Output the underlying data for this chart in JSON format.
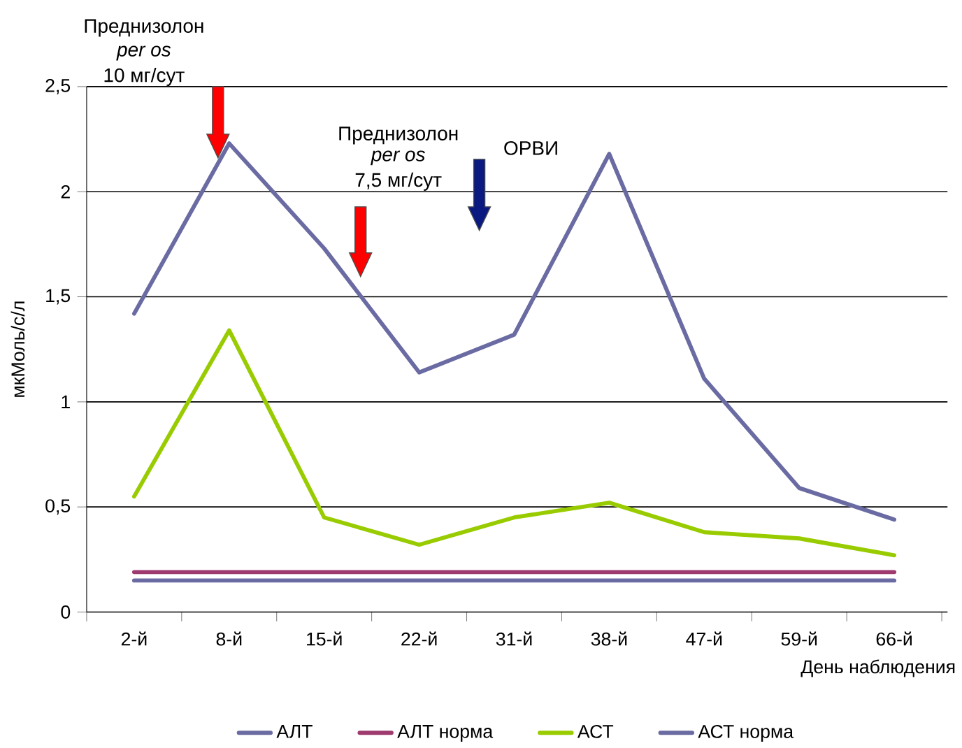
{
  "chart_data": {
    "type": "line",
    "xlabel": "День наблюдения",
    "ylabel": "мкМоль/с/л",
    "categories": [
      "2-й",
      "8-й",
      "15-й",
      "22-й",
      "31-й",
      "38-й",
      "47-й",
      "59-й",
      "66-й"
    ],
    "series": [
      {
        "name": "АЛТ",
        "color": "#6b6ba3",
        "values": [
          1.42,
          2.23,
          1.73,
          1.14,
          1.32,
          2.18,
          1.11,
          0.59,
          0.44
        ]
      },
      {
        "name": "АЛТ норма",
        "color": "#9e3a6e",
        "values": [
          0.19,
          0.19,
          0.19,
          0.19,
          0.19,
          0.19,
          0.19,
          0.19,
          0.19
        ]
      },
      {
        "name": "АСТ",
        "color": "#99cc00",
        "values": [
          0.55,
          1.34,
          0.45,
          0.32,
          0.45,
          0.52,
          0.38,
          0.35,
          0.27
        ]
      },
      {
        "name": "АСТ норма",
        "color": "#6b6ba3",
        "values": [
          0.15,
          0.15,
          0.15,
          0.15,
          0.15,
          0.15,
          0.15,
          0.15,
          0.15
        ]
      }
    ],
    "ylim": [
      0,
      2.5
    ],
    "yticks": [
      0,
      {
        "value": 0.5,
        "label": "0,5"
      },
      1,
      {
        "value": 1.5,
        "label": "1,5"
      },
      2,
      {
        "value": 2.5,
        "label": "2,5"
      }
    ],
    "grid": "y",
    "legend": "bottom",
    "marker": "none",
    "line_style": "solid",
    "annotations": [
      "Преднизолон",
      "*per os*",
      "10 мг/сут",
      "Преднизолон",
      "*per os*",
      "7,5 мг/сут",
      "ОРВИ"
    ]
  }
}
